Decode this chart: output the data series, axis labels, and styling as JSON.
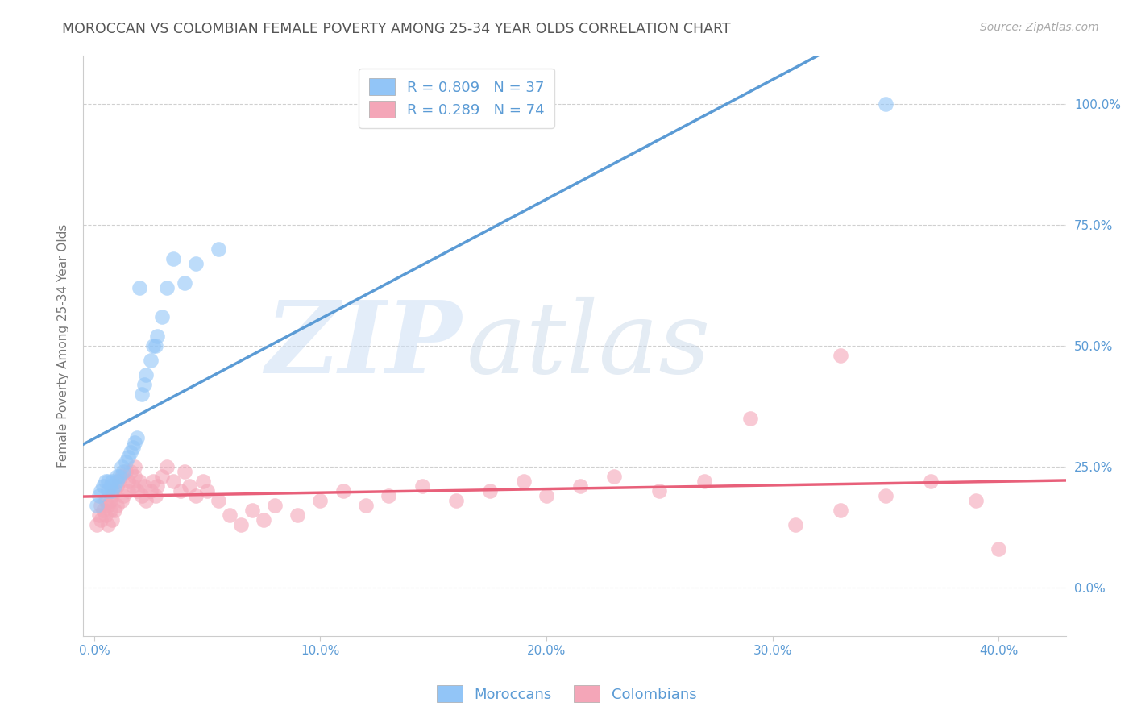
{
  "title": "MOROCCAN VS COLOMBIAN FEMALE POVERTY AMONG 25-34 YEAR OLDS CORRELATION CHART",
  "source": "Source: ZipAtlas.com",
  "ylabel": "Female Poverty Among 25-34 Year Olds",
  "xlabel_tick_vals": [
    0.0,
    0.1,
    0.2,
    0.3,
    0.4
  ],
  "xlabel_ticks": [
    "0.0%",
    "10.0%",
    "20.0%",
    "30.0%",
    "40.0%"
  ],
  "ylabel_tick_vals": [
    0.0,
    0.25,
    0.5,
    0.75,
    1.0
  ],
  "ylabel_ticks": [
    "0.0%",
    "25.0%",
    "50.0%",
    "75.0%",
    "100.0%"
  ],
  "xlim": [
    -0.005,
    0.43
  ],
  "ylim": [
    -0.1,
    1.1
  ],
  "moroccan_R": 0.809,
  "moroccan_N": 37,
  "colombian_R": 0.289,
  "colombian_N": 74,
  "moroccan_color": "#92c5f7",
  "moroccan_line_color": "#5b9bd5",
  "colombian_color": "#f4a6b8",
  "colombian_line_color": "#e8607a",
  "scatter_alpha": 0.6,
  "scatter_size": 180,
  "background_color": "#ffffff",
  "grid_color": "#d0d0d0",
  "tick_color": "#5b9bd5",
  "title_color": "#555555",
  "ylabel_color": "#777777",
  "title_fontsize": 12.5,
  "tick_fontsize": 11,
  "legend_fontsize": 13,
  "axis_label_fontsize": 11,
  "moroccan_x": [
    0.001,
    0.002,
    0.003,
    0.004,
    0.005,
    0.006,
    0.006,
    0.007,
    0.008,
    0.008,
    0.009,
    0.01,
    0.01,
    0.011,
    0.012,
    0.013,
    0.014,
    0.015,
    0.016,
    0.017,
    0.018,
    0.019,
    0.02,
    0.021,
    0.022,
    0.023,
    0.025,
    0.026,
    0.027,
    0.028,
    0.03,
    0.032,
    0.035,
    0.04,
    0.045,
    0.055,
    0.35
  ],
  "moroccan_y": [
    0.17,
    0.19,
    0.2,
    0.21,
    0.22,
    0.2,
    0.22,
    0.21,
    0.22,
    0.2,
    0.21,
    0.23,
    0.22,
    0.23,
    0.25,
    0.24,
    0.26,
    0.27,
    0.28,
    0.29,
    0.3,
    0.31,
    0.62,
    0.4,
    0.42,
    0.44,
    0.47,
    0.5,
    0.5,
    0.52,
    0.56,
    0.62,
    0.68,
    0.63,
    0.67,
    0.7,
    1.0
  ],
  "colombian_x": [
    0.001,
    0.002,
    0.003,
    0.003,
    0.004,
    0.005,
    0.005,
    0.006,
    0.006,
    0.007,
    0.007,
    0.008,
    0.008,
    0.009,
    0.009,
    0.01,
    0.01,
    0.011,
    0.012,
    0.012,
    0.013,
    0.014,
    0.015,
    0.015,
    0.016,
    0.017,
    0.018,
    0.018,
    0.019,
    0.02,
    0.021,
    0.022,
    0.023,
    0.025,
    0.026,
    0.027,
    0.028,
    0.03,
    0.032,
    0.035,
    0.038,
    0.04,
    0.042,
    0.045,
    0.048,
    0.05,
    0.055,
    0.06,
    0.065,
    0.07,
    0.075,
    0.08,
    0.09,
    0.1,
    0.11,
    0.12,
    0.13,
    0.145,
    0.16,
    0.175,
    0.19,
    0.2,
    0.215,
    0.23,
    0.25,
    0.27,
    0.29,
    0.31,
    0.33,
    0.35,
    0.37,
    0.39,
    0.4,
    0.33
  ],
  "colombian_y": [
    0.13,
    0.15,
    0.17,
    0.14,
    0.16,
    0.18,
    0.15,
    0.17,
    0.13,
    0.18,
    0.16,
    0.19,
    0.14,
    0.2,
    0.16,
    0.21,
    0.17,
    0.22,
    0.18,
    0.23,
    0.19,
    0.24,
    0.2,
    0.22,
    0.24,
    0.21,
    0.25,
    0.23,
    0.2,
    0.22,
    0.19,
    0.21,
    0.18,
    0.2,
    0.22,
    0.19,
    0.21,
    0.23,
    0.25,
    0.22,
    0.2,
    0.24,
    0.21,
    0.19,
    0.22,
    0.2,
    0.18,
    0.15,
    0.13,
    0.16,
    0.14,
    0.17,
    0.15,
    0.18,
    0.2,
    0.17,
    0.19,
    0.21,
    0.18,
    0.2,
    0.22,
    0.19,
    0.21,
    0.23,
    0.2,
    0.22,
    0.35,
    0.13,
    0.16,
    0.19,
    0.22,
    0.18,
    0.08,
    0.48
  ]
}
